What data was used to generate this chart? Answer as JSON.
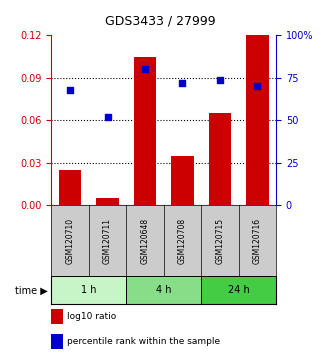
{
  "title": "GDS3433 / 27999",
  "samples": [
    "GSM120710",
    "GSM120711",
    "GSM120648",
    "GSM120708",
    "GSM120715",
    "GSM120716"
  ],
  "log10_ratio": [
    0.025,
    0.005,
    0.105,
    0.035,
    0.065,
    0.12
  ],
  "percentile_rank": [
    68,
    52,
    80,
    72,
    74,
    70
  ],
  "time_groups": [
    {
      "label": "1 h",
      "indices": [
        0,
        1
      ],
      "color": "#c8f5c8"
    },
    {
      "label": "4 h",
      "indices": [
        2,
        3
      ],
      "color": "#88dd88"
    },
    {
      "label": "24 h",
      "indices": [
        4,
        5
      ],
      "color": "#44cc44"
    }
  ],
  "bar_color": "#cc0000",
  "scatter_color": "#0000cc",
  "left_ylim": [
    0,
    0.12
  ],
  "right_ylim": [
    0,
    100
  ],
  "left_yticks": [
    0,
    0.03,
    0.06,
    0.09,
    0.12
  ],
  "right_yticks": [
    0,
    25,
    50,
    75,
    100
  ],
  "right_yticklabels": [
    "0",
    "25",
    "50",
    "75",
    "100%"
  ],
  "left_color": "#cc0000",
  "right_color": "#0000cc",
  "plot_bg": "#ffffff",
  "sample_bg": "#cccccc",
  "bar_width": 0.6,
  "legend_bar_label": "log10 ratio",
  "legend_scatter_label": "percentile rank within the sample"
}
